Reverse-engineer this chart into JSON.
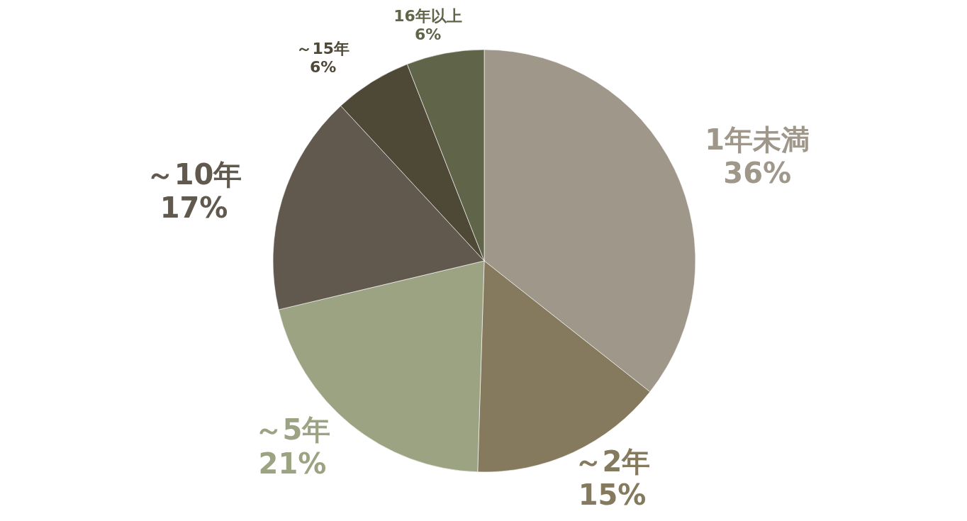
{
  "chart_data": {
    "type": "pie",
    "categories": [
      "1年未満",
      "～2年",
      "～5年",
      "～10年",
      "～15年",
      "16年以上"
    ],
    "values": [
      36,
      15,
      21,
      17,
      6,
      6
    ],
    "value_labels": [
      "36%",
      "15%",
      "21%",
      "17%",
      "6%",
      "6%"
    ],
    "colors": [
      "#9e978a",
      "#857a5e",
      "#9ca382",
      "#61594d",
      "#4e4837",
      "#60654a"
    ]
  }
}
